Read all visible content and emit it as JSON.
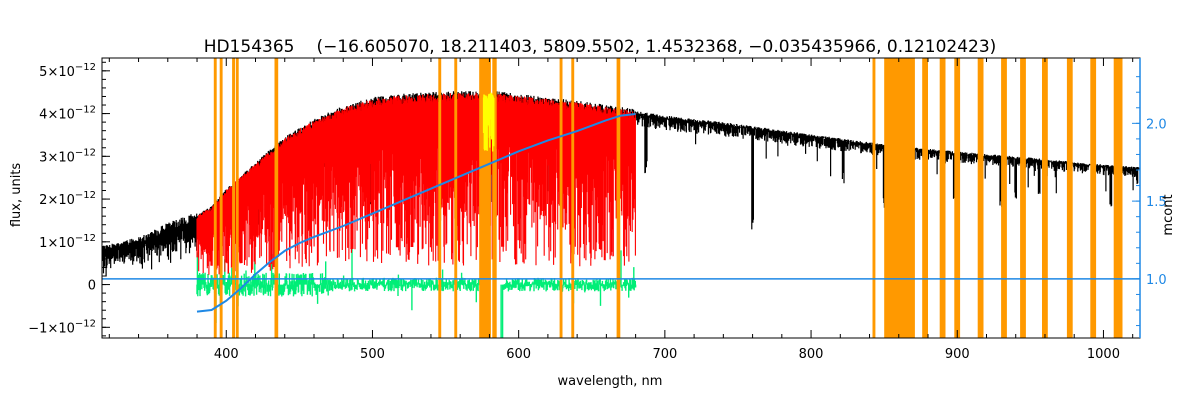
{
  "chart_data": {
    "type": "line",
    "title_object": "HD154365",
    "title_params": "(−16.605070, 18.211403, 5809.5502, 1.4532368, −0.035435966, 0.12102423)",
    "xlabel": "wavelength, nm",
    "ylabel": "flux, units",
    "ylabel_right": "mcont",
    "xlim": [
      315,
      1025
    ],
    "ylim": [
      -1.25e-12,
      5.3e-12
    ],
    "ylim_right": [
      0.62,
      2.42
    ],
    "x_ticks": [
      400,
      500,
      600,
      700,
      800,
      900,
      1000
    ],
    "x_tick_labels": [
      "400",
      "500",
      "600",
      "700",
      "800",
      "900",
      "1000"
    ],
    "y_ticks": [
      -1e-12,
      0,
      1e-12,
      2e-12,
      3e-12,
      4e-12,
      5e-12
    ],
    "y_tick_labels": [
      {
        "mant": "−1×10",
        "exp": "−12"
      },
      {
        "mant": "0",
        "exp": ""
      },
      {
        "mant": "1×10",
        "exp": "−12"
      },
      {
        "mant": "2×10",
        "exp": "−12"
      },
      {
        "mant": "3×10",
        "exp": "−12"
      },
      {
        "mant": "4×10",
        "exp": "−12"
      },
      {
        "mant": "5×10",
        "exp": "−12"
      }
    ],
    "y_right_ticks": [
      1.0,
      1.5,
      2.0
    ],
    "y_right_tick_labels": [
      "1.0",
      "1.5",
      "2.0"
    ],
    "colors": {
      "observed": "#000000",
      "model": "#ff0000",
      "residual": "#00ee77",
      "continuum": "#1e88e5",
      "mask": "#ff9900",
      "highlight": "#ffff00",
      "right_axis": "#1e88e5"
    },
    "series": [
      {
        "role": "observed",
        "x": [
          315,
          330,
          345,
          360,
          372,
          380,
          390,
          400,
          420,
          440,
          460,
          480,
          500,
          520,
          540,
          560,
          580,
          600,
          620,
          640,
          660,
          680,
          700,
          750,
          800,
          850,
          900,
          950,
          1000,
          1025
        ],
        "values": [
          8.5e-13,
          9.5e-13,
          1.1e-12,
          1.35e-12,
          1.5e-12,
          1.6e-12,
          1.8e-12,
          2.2e-12,
          2.8e-12,
          3.4e-12,
          3.8e-12,
          4.1e-12,
          4.3e-12,
          4.38e-12,
          4.42e-12,
          4.44e-12,
          4.45e-12,
          4.38e-12,
          4.3e-12,
          4.22e-12,
          4.12e-12,
          4.02e-12,
          3.92e-12,
          3.72e-12,
          3.48e-12,
          3.25e-12,
          3.08e-12,
          2.94e-12,
          2.78e-12,
          2.72e-12
        ]
      },
      {
        "role": "model",
        "x": [
          380,
          390,
          400,
          420,
          440,
          460,
          480,
          500,
          520,
          540,
          560,
          580,
          600,
          620,
          640,
          660,
          680
        ],
        "values": [
          1.6e-12,
          1.8e-12,
          2.2e-12,
          2.8e-12,
          3.4e-12,
          3.8e-12,
          4.1e-12,
          4.3e-12,
          4.38e-12,
          4.42e-12,
          4.44e-12,
          4.45e-12,
          4.38e-12,
          4.3e-12,
          4.22e-12,
          4.12e-12,
          4.02e-12
        ]
      },
      {
        "role": "residual",
        "x": [
          380,
          680
        ],
        "values": [
          0,
          0
        ]
      },
      {
        "role": "continuum",
        "axis": "right",
        "x": [
          380,
          390,
          400,
          410,
          420,
          430,
          440,
          450,
          460,
          480,
          500,
          520,
          540,
          560,
          580,
          600,
          620,
          640,
          660,
          670,
          680
        ],
        "values": [
          0.79,
          0.8,
          0.86,
          0.94,
          1.03,
          1.11,
          1.18,
          1.23,
          1.27,
          1.34,
          1.42,
          1.5,
          1.58,
          1.66,
          1.74,
          1.82,
          1.89,
          1.95,
          2.02,
          2.05,
          2.06
        ]
      }
    ],
    "continuum_flat_value": 1.0,
    "mask_regions": [
      [
        391.5,
        393.5
      ],
      [
        395.5,
        397.5
      ],
      [
        404,
        406
      ],
      [
        406.5,
        408.5
      ],
      [
        433,
        435.5
      ],
      [
        545,
        547
      ],
      [
        556,
        558
      ],
      [
        573,
        581
      ],
      [
        582,
        585
      ],
      [
        628,
        630
      ],
      [
        636,
        638
      ],
      [
        667,
        669.5
      ],
      [
        842,
        844
      ],
      [
        850,
        871
      ],
      [
        876,
        880
      ],
      [
        888,
        892
      ],
      [
        898,
        902
      ],
      [
        914,
        918
      ],
      [
        930,
        934
      ],
      [
        943,
        947
      ],
      [
        958,
        962
      ],
      [
        975,
        979
      ],
      [
        991,
        995
      ],
      [
        1007,
        1013
      ]
    ]
  }
}
